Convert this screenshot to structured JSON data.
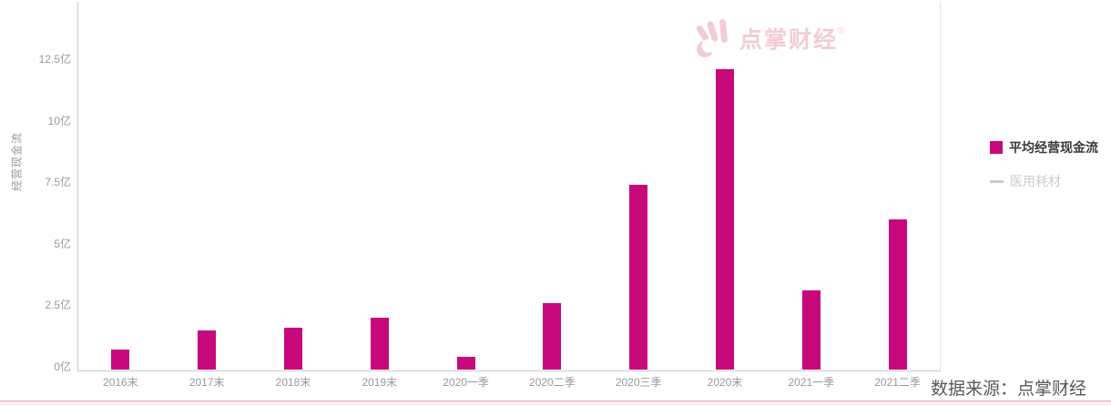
{
  "watermark": {
    "brand": "点掌财经",
    "registered_mark": "®"
  },
  "source_note": "数据来源：点掌财经",
  "legend": {
    "items": [
      {
        "label": "平均经营现金流",
        "marker": "square",
        "color": "#C7097B",
        "active": true
      },
      {
        "label": "医用耗材",
        "marker": "line",
        "color": "#CCCCCC",
        "active": false
      }
    ]
  },
  "chart_data": {
    "type": "bar",
    "title": "",
    "ylabel": "经营现金流",
    "xlabel": "",
    "unit": "亿",
    "categories": [
      "2016末",
      "2017末",
      "2018末",
      "2019末",
      "2020一季",
      "2020二季",
      "2020三季",
      "2020末",
      "2021一季",
      "2021二季"
    ],
    "series": [
      {
        "name": "平均经营现金流",
        "type": "bar",
        "color": "#C7097B",
        "values": [
          0.8,
          1.6,
          1.7,
          2.1,
          0.5,
          2.7,
          7.5,
          12.2,
          3.2,
          6.1
        ]
      },
      {
        "name": "医用耗材",
        "type": "line",
        "visible": false,
        "values": []
      }
    ],
    "yticks": [
      0,
      2.5,
      5,
      7.5,
      10,
      12.5
    ],
    "ytick_labels": [
      "0亿",
      "2.5亿",
      "5亿",
      "7.5亿",
      "10亿",
      "12.5亿"
    ],
    "ylim": [
      0,
      13.6
    ],
    "grid": false,
    "legend_position": "right"
  },
  "colors": {
    "bar": "#C7097B",
    "axis_line": "#CCCCCC",
    "tick_text": "#999999",
    "legend_active_text": "#3C3C3C",
    "legend_inactive_text": "#CCCCCC",
    "divider": "#E2E2E2",
    "watermark": "#F2CCD3",
    "source_text": "#58595B",
    "bottom_line": "#DFAAAE",
    "bottom_fill": "#FCF3F3"
  }
}
